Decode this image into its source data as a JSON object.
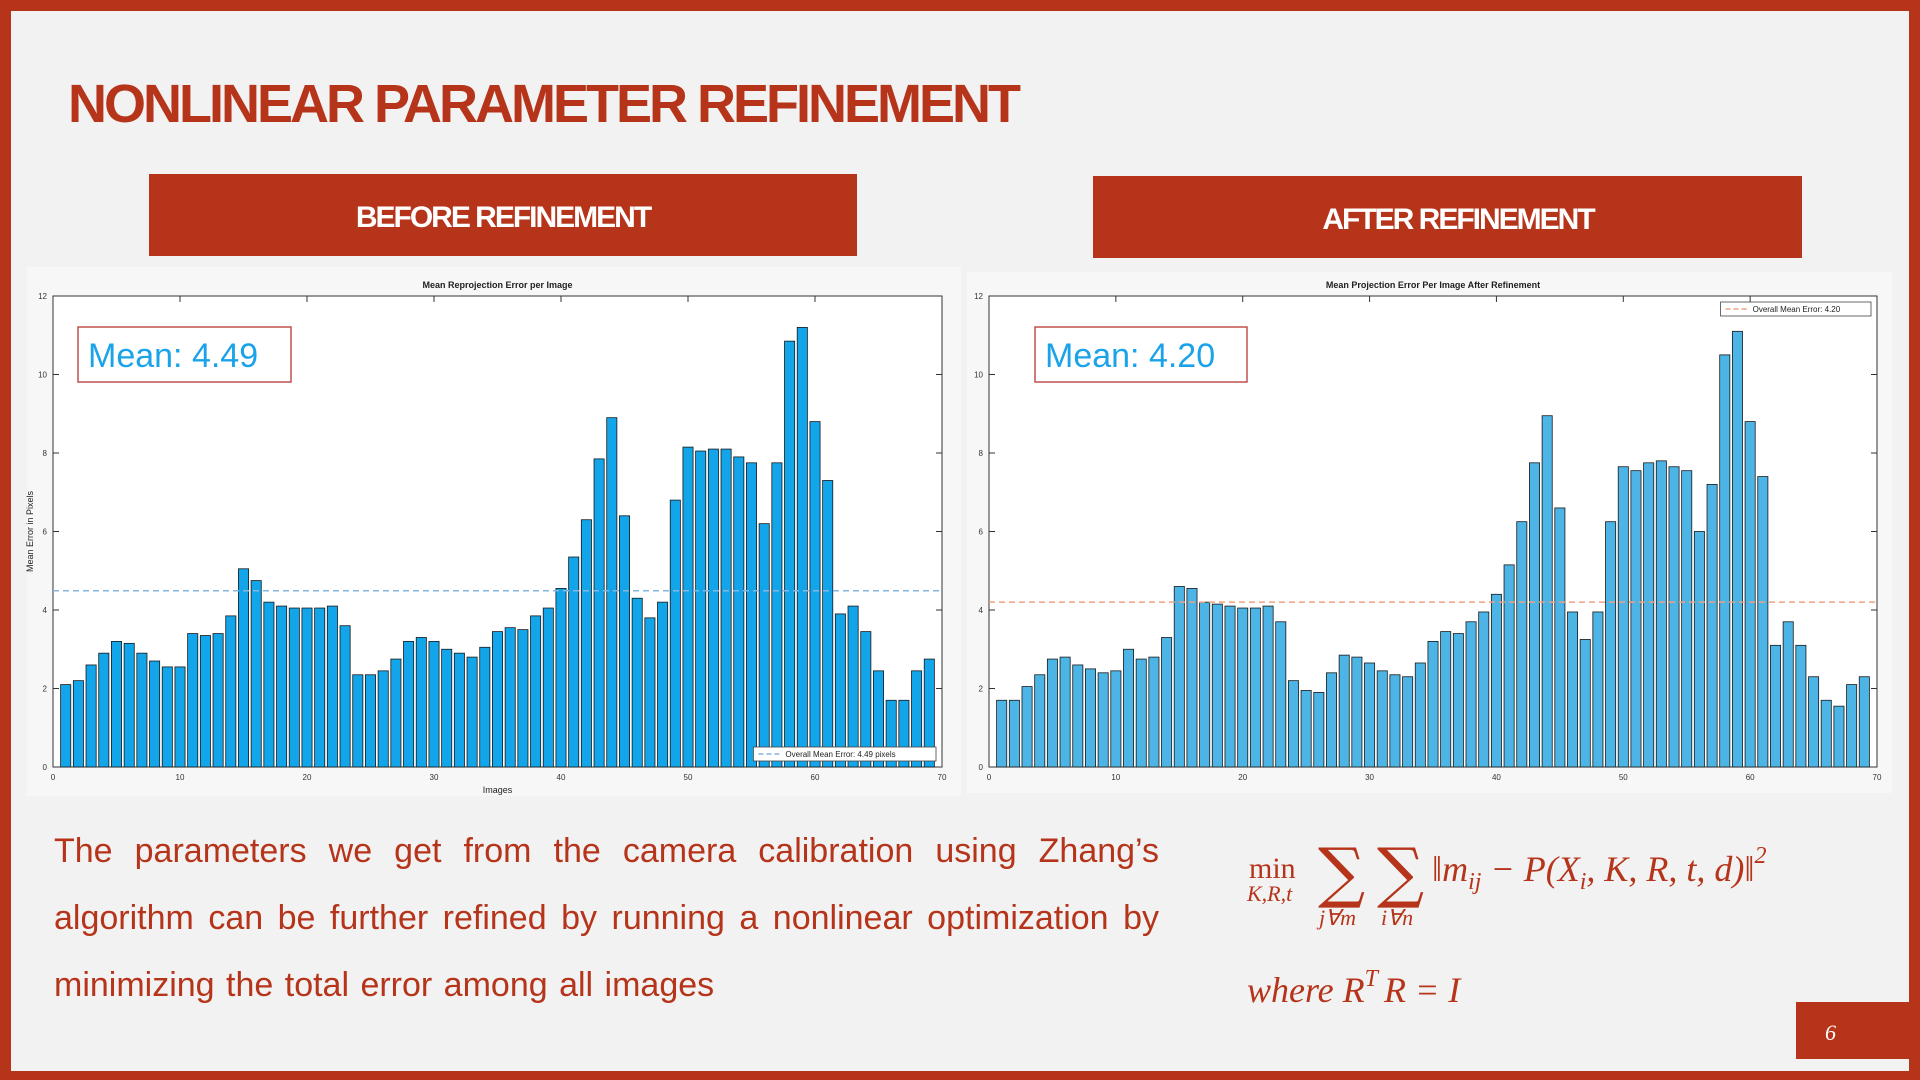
{
  "slide": {
    "title": "NONLINEAR PARAMETER REFINEMENT",
    "headers": [
      "BEFORE REFINEMENT",
      "AFTER REFINEMENT"
    ],
    "body": "The parameters we get from the camera calibration using Zhang’s algorithm can be further refined by running a nonlinear optimization by minimizing the total error among all images",
    "formula": [
      "min",
      "K,R,t",
      "∑",
      "j∀m",
      "∑",
      "i∀n",
      "‖m",
      "ij",
      " − P(X",
      "i",
      ", K, R, t, d)‖",
      "2"
    ],
    "formula_line2": [
      "where R",
      "T",
      "R = I"
    ],
    "page": "6"
  },
  "chart_data": [
    {
      "type": "bar",
      "title": "Mean Reprojection Error per Image",
      "xlabel": "Images",
      "ylabel": "Mean Error in Pixels",
      "x": [
        1,
        2,
        3,
        4,
        5,
        6,
        7,
        8,
        9,
        10,
        11,
        12,
        13,
        14,
        15,
        16,
        17,
        18,
        19,
        20,
        21,
        22,
        23,
        24,
        25,
        26,
        27,
        28,
        29,
        30,
        31,
        32,
        33,
        34,
        35,
        36,
        37,
        38,
        39,
        40,
        41,
        42,
        43,
        44,
        45,
        46,
        47,
        48,
        49,
        50,
        51,
        52,
        53,
        54,
        55,
        56,
        57,
        58,
        59,
        60,
        61,
        62,
        63,
        64,
        65,
        66,
        67,
        68,
        69
      ],
      "values": [
        2.1,
        2.2,
        2.6,
        2.9,
        3.2,
        3.15,
        2.9,
        2.7,
        2.55,
        2.55,
        3.4,
        3.35,
        3.4,
        3.85,
        5.05,
        4.75,
        4.2,
        4.1,
        4.05,
        4.05,
        4.05,
        4.1,
        3.6,
        2.35,
        2.35,
        2.45,
        2.75,
        3.2,
        3.3,
        3.2,
        3.0,
        2.9,
        2.8,
        3.05,
        3.45,
        3.55,
        3.5,
        3.85,
        4.05,
        4.55,
        5.35,
        6.3,
        7.85,
        8.9,
        6.4,
        4.3,
        3.8,
        4.2,
        6.8,
        8.15,
        8.05,
        8.1,
        8.1,
        7.9,
        7.75,
        6.2,
        7.75,
        10.85,
        11.2,
        8.8,
        7.3,
        3.9,
        4.1,
        3.45,
        2.45,
        1.7,
        1.7,
        2.45,
        2.75
      ],
      "color": "#12a5ea",
      "mean_line": {
        "value": 4.49,
        "label": "Overall Mean Error: 4.49 pixels",
        "color": "#86b6e0"
      },
      "legend": "lower right",
      "annotation": "Mean: 4.49",
      "xlim": [
        0,
        70
      ],
      "xticks": [
        0,
        10,
        20,
        30,
        40,
        50,
        60,
        70
      ],
      "ylim": [
        0,
        12
      ],
      "yticks": [
        0,
        2,
        4,
        6,
        8,
        10,
        12
      ],
      "grid": false
    },
    {
      "type": "bar",
      "title": "Mean Projection Error Per Image After Refinement",
      "x": [
        1,
        2,
        3,
        4,
        5,
        6,
        7,
        8,
        9,
        10,
        11,
        12,
        13,
        14,
        15,
        16,
        17,
        18,
        19,
        20,
        21,
        22,
        23,
        24,
        25,
        26,
        27,
        28,
        29,
        30,
        31,
        32,
        33,
        34,
        35,
        36,
        37,
        38,
        39,
        40,
        41,
        42,
        43,
        44,
        45,
        46,
        47,
        48,
        49,
        50,
        51,
        52,
        53,
        54,
        55,
        56,
        57,
        58,
        59,
        60,
        61,
        62,
        63,
        64,
        65,
        66,
        67,
        68,
        69
      ],
      "values": [
        1.7,
        1.7,
        2.05,
        2.35,
        2.75,
        2.8,
        2.6,
        2.5,
        2.4,
        2.45,
        3.0,
        2.75,
        2.8,
        3.3,
        4.6,
        4.55,
        4.2,
        4.15,
        4.1,
        4.05,
        4.05,
        4.1,
        3.7,
        2.2,
        1.95,
        1.9,
        2.4,
        2.85,
        2.8,
        2.65,
        2.45,
        2.35,
        2.3,
        2.65,
        3.2,
        3.45,
        3.4,
        3.7,
        3.95,
        4.4,
        5.15,
        6.25,
        7.75,
        8.95,
        6.6,
        3.95,
        3.25,
        3.95,
        6.25,
        7.65,
        7.55,
        7.75,
        7.8,
        7.65,
        7.55,
        6.0,
        7.2,
        10.5,
        11.1,
        8.8,
        7.4,
        3.1,
        3.7,
        3.1,
        2.3,
        1.7,
        1.55,
        2.1,
        2.3
      ],
      "color": "#4db4e6",
      "mean_line": {
        "value": 4.2,
        "label": "Overall Mean Error: 4.20",
        "color": "#f0a080"
      },
      "legend": "upper right",
      "annotation": "Mean: 4.20",
      "xlim": [
        0,
        70
      ],
      "xticks": [
        0,
        10,
        20,
        30,
        40,
        50,
        60,
        70
      ],
      "ylim": [
        0,
        12
      ],
      "yticks": [
        0,
        2,
        4,
        6,
        8,
        10,
        12
      ],
      "grid": false
    }
  ]
}
